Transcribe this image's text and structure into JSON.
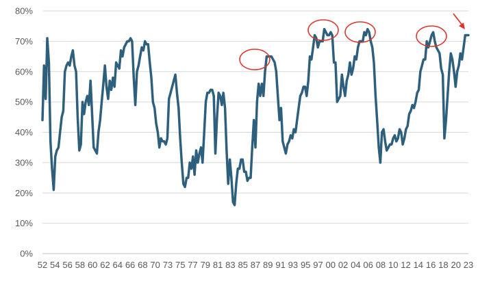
{
  "chart_data": {
    "type": "line",
    "title": "",
    "xlabel": "",
    "ylabel": "",
    "ylim": [
      0,
      80
    ],
    "y_ticks": [
      "0%",
      "10%",
      "20%",
      "30%",
      "40%",
      "50%",
      "60%",
      "70%",
      "80%"
    ],
    "y_tick_values": [
      0,
      10,
      20,
      30,
      40,
      50,
      60,
      70,
      80
    ],
    "x_ticks": [
      "52",
      "54",
      "56",
      "58",
      "60",
      "62",
      "64",
      "66",
      "68",
      "70",
      "73",
      "75",
      "77",
      "79",
      "81",
      "83",
      "85",
      "87",
      "89",
      "91",
      "93",
      "95",
      "97",
      "00",
      "02",
      "04",
      "06",
      "08",
      "10",
      "12",
      "14",
      "16",
      "18",
      "20",
      "23"
    ],
    "grid": true,
    "legend": "none",
    "line_color": "#2e5f7d",
    "highlight_color": "#e0342b",
    "series": [
      {
        "values": [
          44,
          62,
          51,
          71,
          63,
          37,
          28,
          21,
          32,
          34,
          35,
          40,
          45,
          47,
          60,
          62,
          63,
          62,
          65,
          67,
          62,
          60,
          45,
          34,
          36,
          50,
          46,
          50,
          52,
          49,
          57,
          46,
          35,
          34,
          33,
          40,
          44,
          50,
          56,
          62,
          55,
          51,
          57,
          54,
          58,
          55,
          63,
          62,
          61,
          67,
          65,
          68,
          69,
          70,
          70,
          71,
          70,
          58,
          49,
          60,
          62,
          65,
          68,
          67,
          70,
          69,
          69,
          63,
          58,
          50,
          48,
          43,
          40,
          35,
          38,
          37,
          37,
          36,
          38,
          51,
          53,
          55,
          57,
          59,
          53,
          48,
          38,
          30,
          23,
          22,
          25,
          25,
          30,
          28,
          32,
          26,
          34,
          30,
          33,
          35,
          30,
          40,
          50,
          53,
          53,
          54,
          54,
          52,
          33,
          45,
          53,
          52,
          49,
          53,
          48,
          34,
          23,
          31,
          25,
          17,
          16,
          23,
          28,
          28,
          31,
          31,
          27,
          27,
          24,
          25,
          25,
          35,
          44,
          35,
          50,
          56,
          52,
          56,
          52,
          60,
          65,
          65,
          65,
          65,
          64,
          63,
          60,
          52,
          44,
          48,
          37,
          35,
          33,
          36,
          37,
          39,
          38,
          41,
          40,
          44,
          48,
          52,
          53,
          55,
          55,
          52,
          57,
          65,
          64,
          68,
          72,
          71,
          68,
          70,
          70,
          70,
          74,
          73,
          72,
          72,
          73,
          72,
          63,
          63,
          50,
          51,
          52,
          59,
          55,
          52,
          57,
          59,
          63,
          59,
          61,
          65,
          64,
          68,
          70,
          70,
          70,
          73,
          72,
          74,
          73,
          70,
          68,
          63,
          52,
          44,
          35,
          30,
          40,
          41,
          37,
          34,
          35,
          36,
          36,
          38,
          39,
          37,
          38,
          41,
          40,
          36,
          38,
          41,
          42,
          46,
          47,
          49,
          48,
          50,
          53,
          54,
          60,
          62,
          64,
          64,
          70,
          68,
          70,
          72,
          73,
          70,
          68,
          67,
          66,
          61,
          59,
          38,
          44,
          52,
          60,
          66,
          64,
          60,
          55,
          60,
          62,
          66,
          64,
          68,
          72,
          72,
          72
        ]
      }
    ],
    "highlighted_peaks": [
      "87-89",
      "99-01",
      "05-07",
      "17-19"
    ],
    "arrow_annotation": "latest value"
  }
}
